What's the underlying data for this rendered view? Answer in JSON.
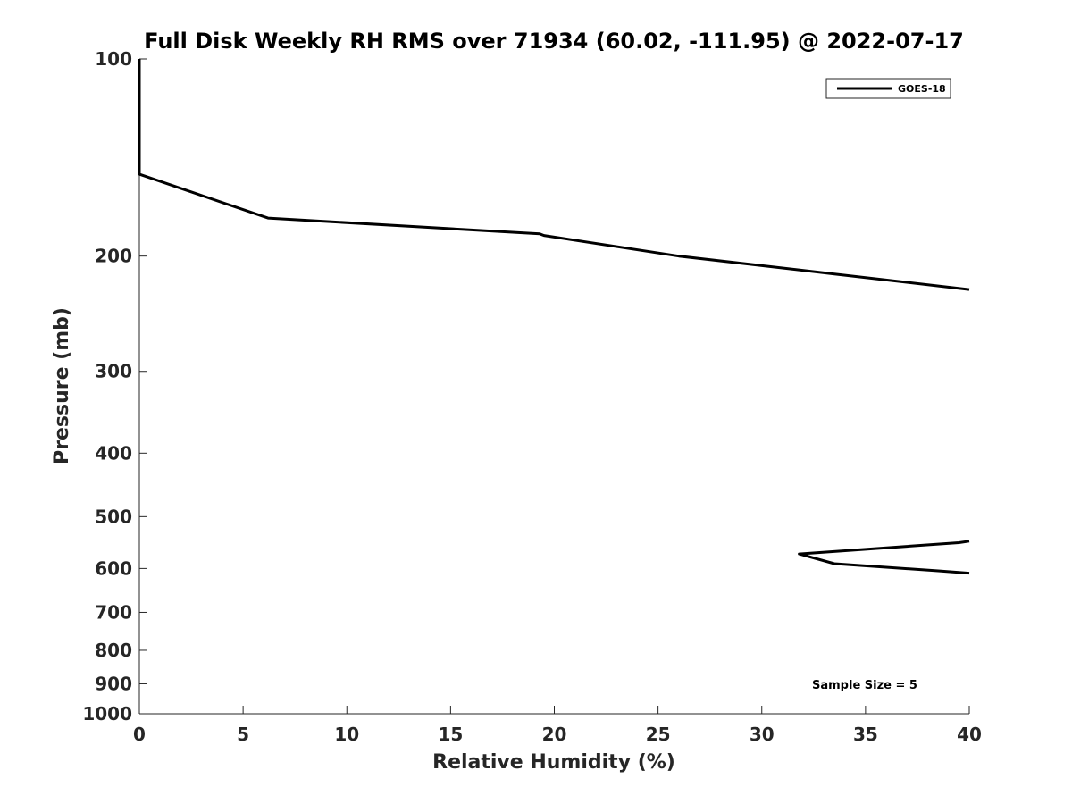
{
  "chart_data": {
    "type": "line",
    "title": "Full Disk Weekly RH RMS over 71934 (60.02, -111.95) @ 2022-07-17",
    "xlabel": "Relative Humidity (%)",
    "ylabel": "Pressure (mb)",
    "xlim": [
      0,
      40
    ],
    "ylim": [
      100,
      1000
    ],
    "y_scale": "log",
    "y_direction": "reversed",
    "grid": false,
    "legend_position": "top-right",
    "x_ticks": [
      "0",
      "5",
      "10",
      "15",
      "20",
      "25",
      "30",
      "35",
      "40"
    ],
    "y_ticks": [
      "100",
      "200",
      "300",
      "400",
      "500",
      "600",
      "700",
      "800",
      "900",
      "1000"
    ],
    "series": [
      {
        "name": "GOES-18",
        "color": "#000000",
        "segments": [
          [
            {
              "x": 0.0,
              "y": 100
            },
            {
              "x": 0.0,
              "y": 150
            },
            {
              "x": 6.2,
              "y": 175
            },
            {
              "x": 19.3,
              "y": 185
            },
            {
              "x": 19.5,
              "y": 186
            },
            {
              "x": 26.0,
              "y": 200
            },
            {
              "x": 33.5,
              "y": 213
            },
            {
              "x": 40.0,
              "y": 225
            }
          ],
          [
            {
              "x": 40.0,
              "y": 545
            },
            {
              "x": 39.5,
              "y": 548
            },
            {
              "x": 31.8,
              "y": 570
            },
            {
              "x": 33.5,
              "y": 590
            },
            {
              "x": 38.5,
              "y": 605
            },
            {
              "x": 40.0,
              "y": 610
            }
          ]
        ]
      }
    ],
    "annotations": [
      {
        "text": "Sample Size = 5"
      }
    ]
  }
}
